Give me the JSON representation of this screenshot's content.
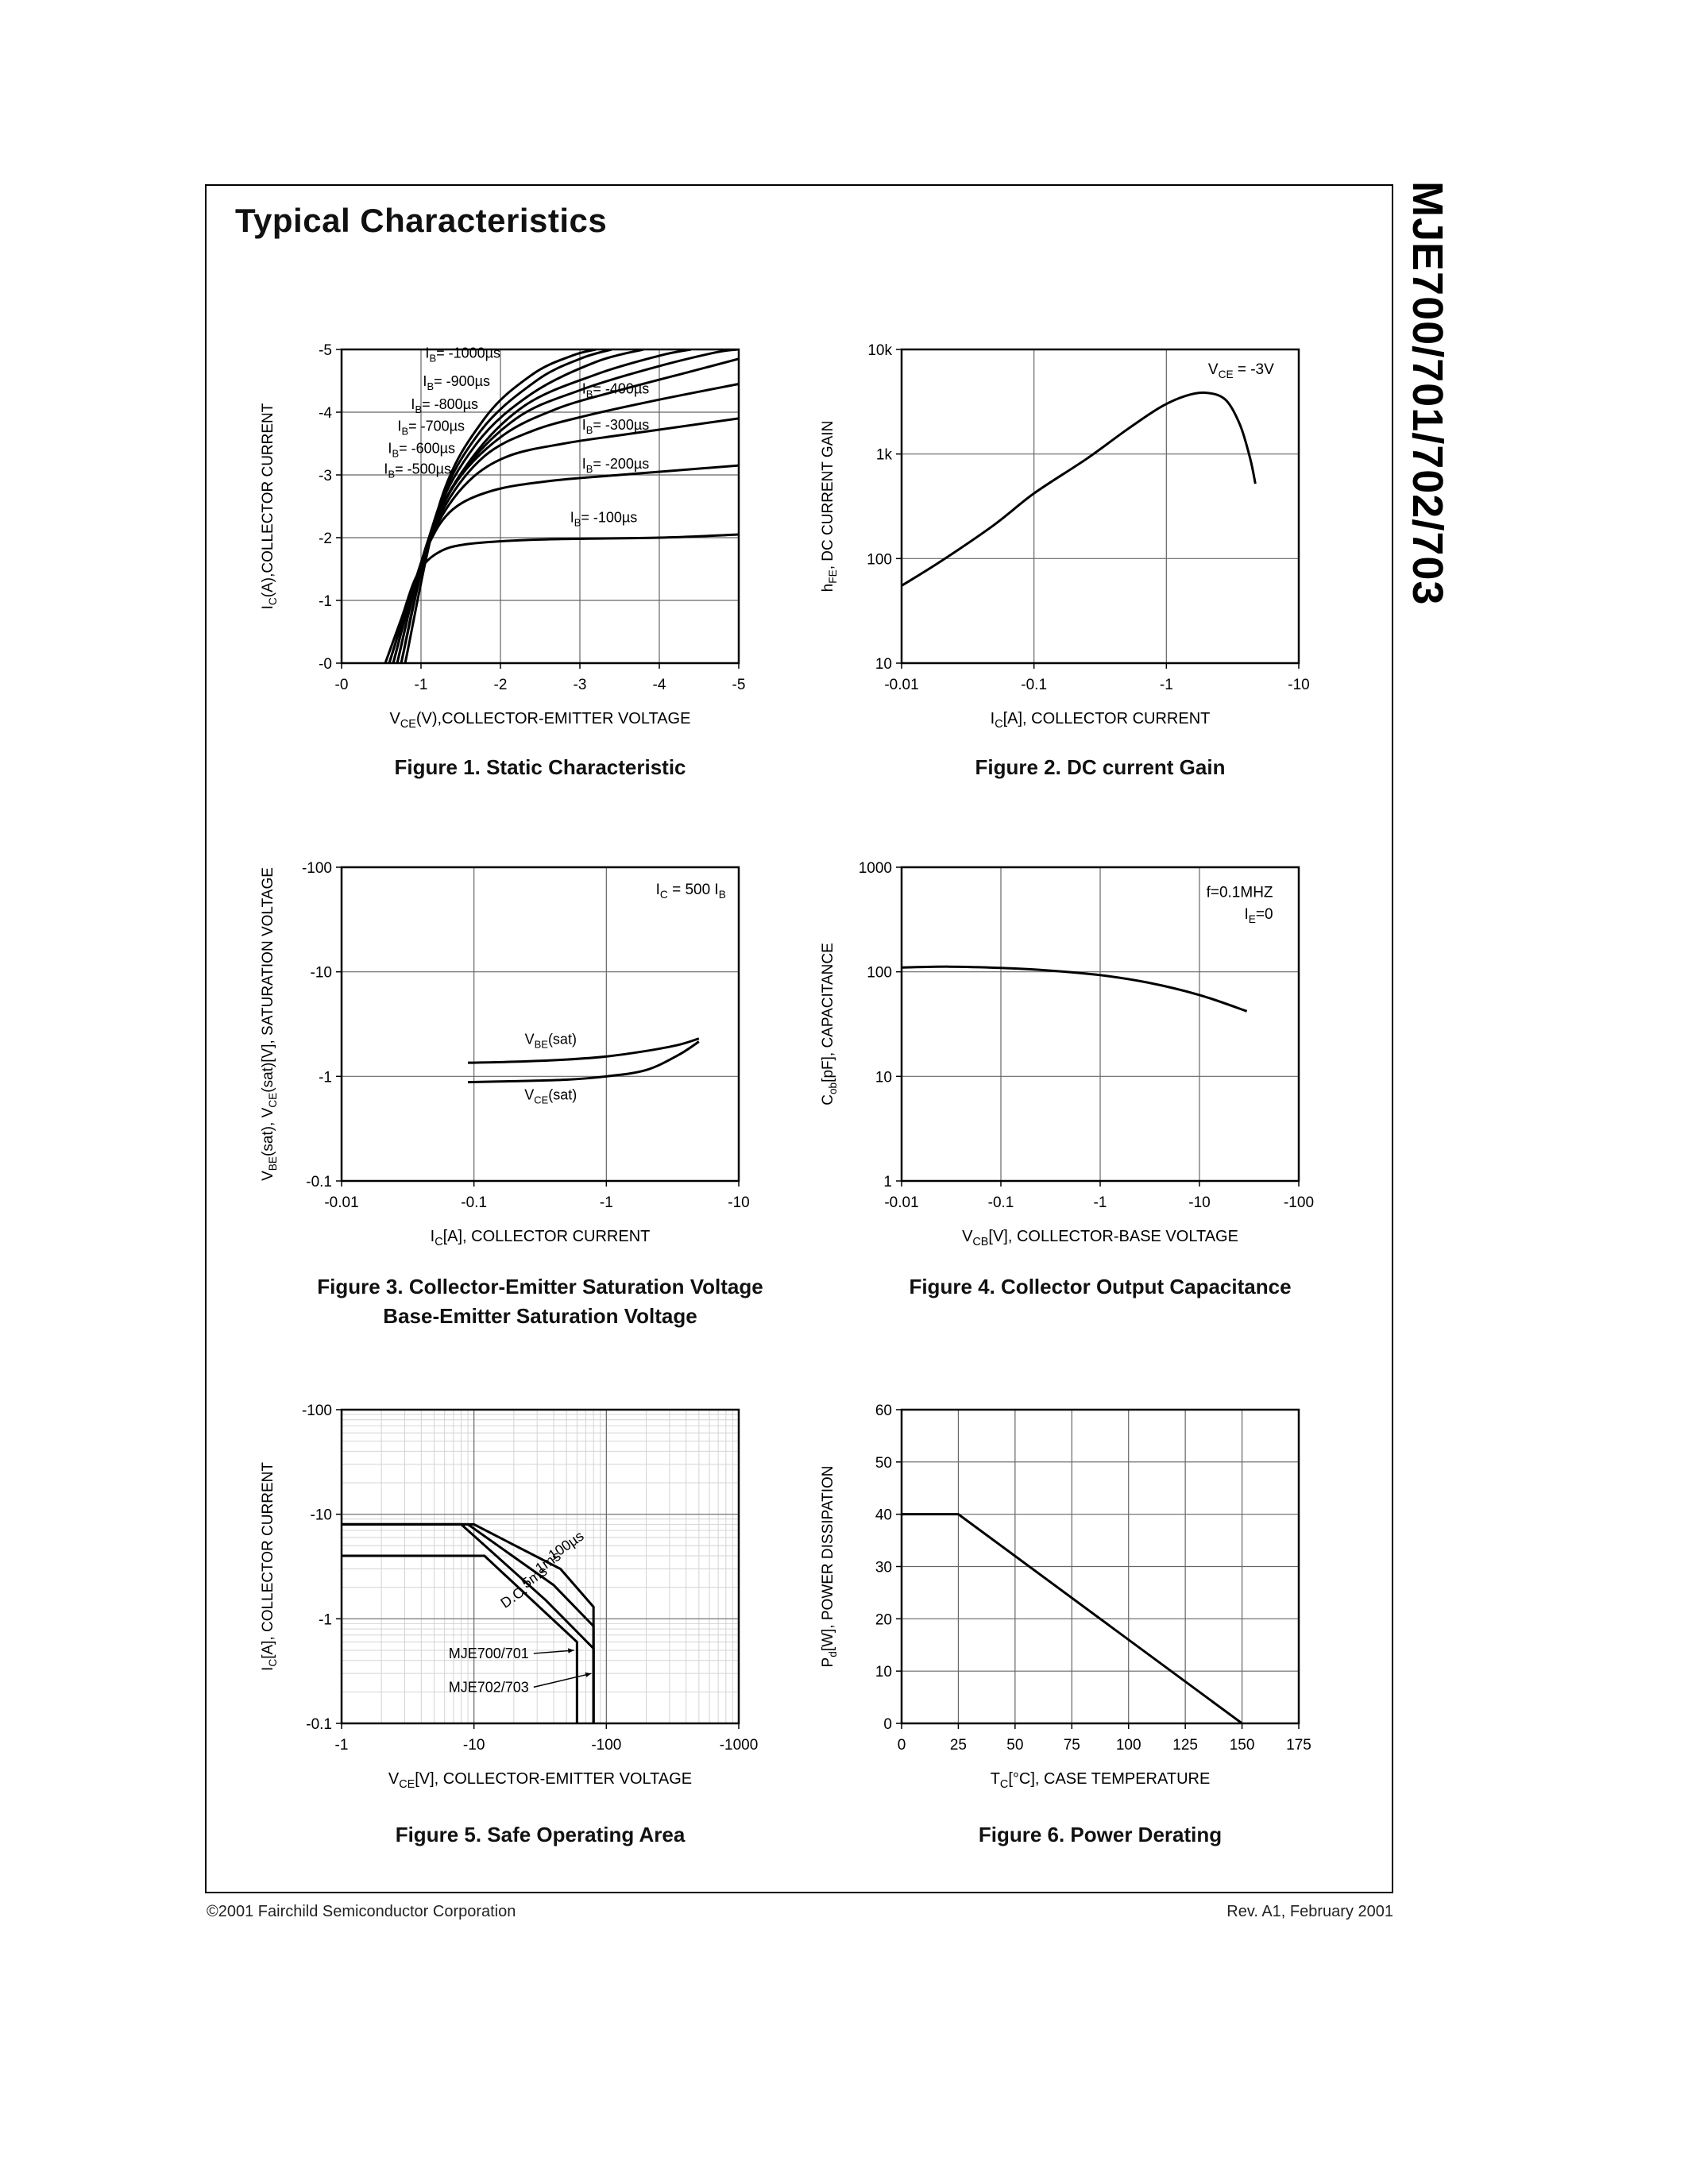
{
  "page": {
    "title": "Typical Characteristics",
    "side_title": "MJE700/701/702/703",
    "footer_left": "©2001 Fairchild Semiconductor Corporation",
    "footer_right": "Rev. A1, February 2001"
  },
  "chart_data": [
    {
      "type": "line",
      "caption": "Figure 1. Static Characteristic",
      "x": {
        "scale": "linear",
        "min": 0,
        "max": 5,
        "label": "V~CE~(V),COLLECTOR-EMITTER VOLTAGE",
        "ticks": [
          [
            0,
            "-0"
          ],
          [
            1,
            "-1"
          ],
          [
            2,
            "-2"
          ],
          [
            3,
            "-3"
          ],
          [
            4,
            "-4"
          ],
          [
            5,
            "-5"
          ]
        ]
      },
      "y": {
        "scale": "linear",
        "min": 0,
        "max": 5,
        "label": "I~C~(A),COLLECTOR CURRENT",
        "ticks": [
          [
            0,
            "-0"
          ],
          [
            1,
            "-1"
          ],
          [
            2,
            "-2"
          ],
          [
            3,
            "-3"
          ],
          [
            4,
            "-4"
          ],
          [
            5,
            "-5"
          ]
        ]
      },
      "series": [
        {
          "name": "IB=-100µs",
          "points": [
            [
              0.55,
              0
            ],
            [
              0.75,
              0.7
            ],
            [
              0.95,
              1.4
            ],
            [
              1.2,
              1.75
            ],
            [
              1.6,
              1.9
            ],
            [
              2.5,
              1.97
            ],
            [
              4,
              2.0
            ],
            [
              5,
              2.05
            ]
          ]
        },
        {
          "name": "IB=-200µs",
          "points": [
            [
              0.6,
              0
            ],
            [
              0.85,
              1.0
            ],
            [
              1.1,
              1.9
            ],
            [
              1.4,
              2.45
            ],
            [
              1.9,
              2.75
            ],
            [
              2.6,
              2.9
            ],
            [
              3.5,
              3.0
            ],
            [
              5,
              3.15
            ]
          ]
        },
        {
          "name": "IB=-300µs",
          "points": [
            [
              0.6,
              0
            ],
            [
              0.9,
              1.2
            ],
            [
              1.2,
              2.2
            ],
            [
              1.6,
              2.9
            ],
            [
              2.1,
              3.3
            ],
            [
              2.8,
              3.5
            ],
            [
              3.6,
              3.65
            ],
            [
              5,
              3.9
            ]
          ]
        },
        {
          "name": "IB=-400µs",
          "points": [
            [
              0.65,
              0
            ],
            [
              0.95,
              1.4
            ],
            [
              1.3,
              2.5
            ],
            [
              1.8,
              3.3
            ],
            [
              2.4,
              3.7
            ],
            [
              3.1,
              3.95
            ],
            [
              4.0,
              4.2
            ],
            [
              5,
              4.45
            ]
          ]
        },
        {
          "name": "IB=-500µs",
          "points": [
            [
              0.65,
              0
            ],
            [
              1.0,
              1.6
            ],
            [
              1.4,
              2.8
            ],
            [
              2.0,
              3.6
            ],
            [
              2.7,
              4.05
            ],
            [
              3.5,
              4.35
            ],
            [
              4.4,
              4.65
            ],
            [
              5,
              4.85
            ]
          ]
        },
        {
          "name": "IB=-600µs",
          "points": [
            [
              0.7,
              0
            ],
            [
              1.05,
              1.8
            ],
            [
              1.5,
              3.0
            ],
            [
              2.2,
              3.9
            ],
            [
              3.0,
              4.35
            ],
            [
              3.9,
              4.7
            ],
            [
              4.7,
              4.95
            ],
            [
              5,
              5.0
            ]
          ]
        },
        {
          "name": "IB=-700µs",
          "points": [
            [
              0.7,
              0
            ],
            [
              1.1,
              2.0
            ],
            [
              1.6,
              3.2
            ],
            [
              2.3,
              4.1
            ],
            [
              3.2,
              4.6
            ],
            [
              4.0,
              4.9
            ],
            [
              4.4,
              5.0
            ]
          ]
        },
        {
          "name": "IB=-800µs",
          "points": [
            [
              0.75,
              0
            ],
            [
              1.15,
              2.2
            ],
            [
              1.7,
              3.5
            ],
            [
              2.4,
              4.3
            ],
            [
              3.2,
              4.8
            ],
            [
              3.8,
              5.0
            ]
          ]
        },
        {
          "name": "IB=-900µs",
          "points": [
            [
              0.75,
              0
            ],
            [
              1.2,
              2.4
            ],
            [
              1.75,
              3.7
            ],
            [
              2.45,
              4.5
            ],
            [
              3.0,
              4.85
            ],
            [
              3.4,
              5.0
            ]
          ]
        },
        {
          "name": "IB=-1000µs",
          "points": [
            [
              0.8,
              0
            ],
            [
              1.25,
              2.6
            ],
            [
              1.8,
              3.9
            ],
            [
              2.4,
              4.6
            ],
            [
              2.9,
              4.9
            ],
            [
              3.2,
              5.0
            ]
          ]
        }
      ],
      "labels": [
        {
          "text": "I~B~= -1000µs",
          "x": 2.0,
          "y": 4.87,
          "anchor": "end"
        },
        {
          "text": "I~B~= -900µs",
          "x": 1.87,
          "y": 4.42,
          "anchor": "end"
        },
        {
          "text": "I~B~= -800µs",
          "x": 1.72,
          "y": 4.05,
          "anchor": "end"
        },
        {
          "text": "I~B~= -700µs",
          "x": 1.55,
          "y": 3.7,
          "anchor": "end"
        },
        {
          "text": "I~B~= -600µs",
          "x": 1.43,
          "y": 3.35,
          "anchor": "end"
        },
        {
          "text": "I~B~= -500µs",
          "x": 1.38,
          "y": 3.02,
          "anchor": "end"
        },
        {
          "text": "I~B~= -400µs",
          "x": 3.45,
          "y": 4.3,
          "anchor": "middle"
        },
        {
          "text": "I~B~= -300µs",
          "x": 3.45,
          "y": 3.72,
          "anchor": "middle"
        },
        {
          "text": "I~B~= -200µs",
          "x": 3.45,
          "y": 3.1,
          "anchor": "middle"
        },
        {
          "text": "I~B~= -100µs",
          "x": 3.3,
          "y": 2.25,
          "anchor": "middle"
        }
      ]
    },
    {
      "type": "line",
      "caption": "Figure 2. DC current Gain",
      "x": {
        "scale": "log",
        "min": 0.01,
        "max": 10,
        "label": "I~C~[A], COLLECTOR CURRENT",
        "ticks": [
          [
            0.01,
            "-0.01"
          ],
          [
            0.1,
            "-0.1"
          ],
          [
            1,
            "-1"
          ],
          [
            10,
            "-10"
          ]
        ]
      },
      "y": {
        "scale": "log",
        "min": 10,
        "max": 10000,
        "label": "h~FE~, DC CURRENT GAIN",
        "ticks": [
          [
            10,
            "10"
          ],
          [
            100,
            "100"
          ],
          [
            1000,
            "1k"
          ],
          [
            10000,
            "10k"
          ]
        ]
      },
      "series": [
        {
          "name": "hFE",
          "points": [
            [
              0.01,
              55
            ],
            [
              0.02,
              95
            ],
            [
              0.05,
              210
            ],
            [
              0.1,
              420
            ],
            [
              0.25,
              900
            ],
            [
              0.5,
              1700
            ],
            [
              0.9,
              2800
            ],
            [
              1.4,
              3600
            ],
            [
              2.0,
              3850
            ],
            [
              2.8,
              3300
            ],
            [
              3.6,
              1900
            ],
            [
              4.3,
              900
            ],
            [
              4.7,
              520
            ]
          ]
        }
      ],
      "labels": [
        {
          "text": "V~CE~ = -3V",
          "x": 6.5,
          "y": 5800,
          "anchor": "end",
          "size": 19
        }
      ]
    },
    {
      "type": "line",
      "caption": "Figure 3. Collector-Emitter Saturation Voltage",
      "caption2": "Base-Emitter Saturation Voltage",
      "x": {
        "scale": "log",
        "min": 0.01,
        "max": 10,
        "label": "I~C~[A], COLLECTOR CURRENT",
        "ticks": [
          [
            0.01,
            "-0.01"
          ],
          [
            0.1,
            "-0.1"
          ],
          [
            1,
            "-1"
          ],
          [
            10,
            "-10"
          ]
        ]
      },
      "y": {
        "scale": "log",
        "min": 0.1,
        "max": 100,
        "label": "V~BE~(sat), V~CE~(sat)[V], SATURATION VOLTAGE",
        "ticks": [
          [
            0.1,
            "-0.1"
          ],
          [
            1,
            "-1"
          ],
          [
            10,
            "-10"
          ],
          [
            100,
            "-100"
          ]
        ]
      },
      "series": [
        {
          "name": "VBE(sat)",
          "points": [
            [
              0.09,
              1.35
            ],
            [
              0.2,
              1.38
            ],
            [
              0.5,
              1.45
            ],
            [
              1,
              1.55
            ],
            [
              2,
              1.75
            ],
            [
              3.5,
              2.0
            ],
            [
              5,
              2.3
            ]
          ]
        },
        {
          "name": "VCE(sat)",
          "points": [
            [
              0.09,
              0.88
            ],
            [
              0.2,
              0.9
            ],
            [
              0.5,
              0.93
            ],
            [
              1,
              1.0
            ],
            [
              2,
              1.15
            ],
            [
              3.5,
              1.6
            ],
            [
              5,
              2.15
            ]
          ]
        }
      ],
      "labels": [
        {
          "text": "V~BE~(sat)",
          "x": 0.38,
          "y": 2.05,
          "anchor": "middle"
        },
        {
          "text": "V~CE~(sat)",
          "x": 0.38,
          "y": 0.6,
          "anchor": "middle"
        },
        {
          "text": "I~C~ = 500 I~B~",
          "x": 8.0,
          "y": 55,
          "anchor": "end",
          "size": 19
        }
      ]
    },
    {
      "type": "line",
      "caption": "Figure 4. Collector Output Capacitance",
      "x": {
        "scale": "log",
        "min": 0.01,
        "max": 100,
        "label": "V~CB~[V], COLLECTOR-BASE VOLTAGE",
        "ticks": [
          [
            0.01,
            "-0.01"
          ],
          [
            0.1,
            "-0.1"
          ],
          [
            1,
            "-1"
          ],
          [
            10,
            "-10"
          ],
          [
            100,
            "-100"
          ]
        ]
      },
      "y": {
        "scale": "log",
        "min": 1,
        "max": 1000,
        "label": "C~ob~[pF], CAPACITANCE",
        "ticks": [
          [
            1,
            "1"
          ],
          [
            10,
            "10"
          ],
          [
            100,
            "100"
          ],
          [
            1000,
            "1000"
          ]
        ]
      },
      "series": [
        {
          "name": "Cob",
          "points": [
            [
              0.01,
              110
            ],
            [
              0.03,
              112
            ],
            [
              0.1,
              109
            ],
            [
              0.3,
              103
            ],
            [
              1,
              93
            ],
            [
              3,
              79
            ],
            [
              10,
              60
            ],
            [
              30,
              42
            ]
          ]
        }
      ],
      "labels": [
        {
          "text": "f=0.1MHZ",
          "x": 55,
          "y": 520,
          "anchor": "end",
          "size": 19
        },
        {
          "text": "I~E~=0",
          "x": 55,
          "y": 320,
          "anchor": "end",
          "size": 19
        }
      ]
    },
    {
      "type": "line",
      "caption": "Figure 5. Safe Operating Area",
      "minor_grid": true,
      "x": {
        "scale": "log",
        "min": 1,
        "max": 1000,
        "label": "V~CE~[V], COLLECTOR-EMITTER VOLTAGE",
        "ticks": [
          [
            1,
            "-1"
          ],
          [
            10,
            "-10"
          ],
          [
            100,
            "-100"
          ],
          [
            1000,
            "-1000"
          ]
        ]
      },
      "y": {
        "scale": "log",
        "min": 0.1,
        "max": 100,
        "label": "I~C~[A], COLLECTOR CURRENT",
        "ticks": [
          [
            0.1,
            "-0.1"
          ],
          [
            1,
            "-1"
          ],
          [
            10,
            "-10"
          ],
          [
            100,
            "-100"
          ]
        ]
      },
      "series": [
        {
          "name": "100µs",
          "smooth": false,
          "points": [
            [
              1,
              8
            ],
            [
              10,
              8
            ],
            [
              45,
              3.0
            ],
            [
              80,
              1.3
            ],
            [
              80,
              0.1
            ]
          ]
        },
        {
          "name": "1ms",
          "smooth": false,
          "points": [
            [
              1,
              8
            ],
            [
              9,
              8
            ],
            [
              40,
              2.1
            ],
            [
              80,
              0.85
            ],
            [
              80,
              0.1
            ]
          ]
        },
        {
          "name": "5ms",
          "smooth": false,
          "points": [
            [
              1,
              8
            ],
            [
              8,
              8
            ],
            [
              35,
              1.5
            ],
            [
              80,
              0.52
            ],
            [
              80,
              0.1
            ]
          ]
        },
        {
          "name": "D.C.",
          "smooth": false,
          "points": [
            [
              1,
              4
            ],
            [
              12,
              4
            ],
            [
              60,
              0.6
            ],
            [
              60,
              0.1
            ]
          ]
        }
      ],
      "labels": [
        {
          "text": "100µs",
          "x": 52,
          "y": 4.6,
          "anchor": "middle",
          "rotate": -35
        },
        {
          "text": "1ms",
          "x": 38,
          "y": 3.2,
          "anchor": "middle",
          "rotate": -35
        },
        {
          "text": "5ms",
          "x": 30,
          "y": 2.3,
          "anchor": "middle",
          "rotate": -35
        },
        {
          "text": "D.C.",
          "x": 21,
          "y": 1.5,
          "anchor": "middle",
          "rotate": -35
        },
        {
          "text": "MJE700/701",
          "x": 26,
          "y": 0.42,
          "anchor": "end",
          "arrow_to": [
            57,
            0.5
          ]
        },
        {
          "text": "MJE702/703",
          "x": 26,
          "y": 0.2,
          "anchor": "end",
          "arrow_to": [
            77,
            0.3
          ]
        }
      ]
    },
    {
      "type": "line",
      "caption": "Figure 6. Power Derating",
      "x": {
        "scale": "linear",
        "min": 0,
        "max": 175,
        "label": "T~C~[°C], CASE TEMPERATURE",
        "ticks": [
          [
            0,
            "0"
          ],
          [
            25,
            "25"
          ],
          [
            50,
            "50"
          ],
          [
            75,
            "75"
          ],
          [
            100,
            "100"
          ],
          [
            125,
            "125"
          ],
          [
            150,
            "150"
          ],
          [
            175,
            "175"
          ]
        ]
      },
      "y": {
        "scale": "linear",
        "min": 0,
        "max": 60,
        "label": "P~d~[W], POWER DISSIPATION",
        "ticks": [
          [
            0,
            "0"
          ],
          [
            10,
            "10"
          ],
          [
            20,
            "20"
          ],
          [
            30,
            "30"
          ],
          [
            40,
            "40"
          ],
          [
            50,
            "50"
          ],
          [
            60,
            "60"
          ]
        ]
      },
      "series": [
        {
          "name": "derating",
          "smooth": false,
          "points": [
            [
              0,
              40
            ],
            [
              25,
              40
            ],
            [
              150,
              0
            ]
          ]
        }
      ]
    }
  ]
}
